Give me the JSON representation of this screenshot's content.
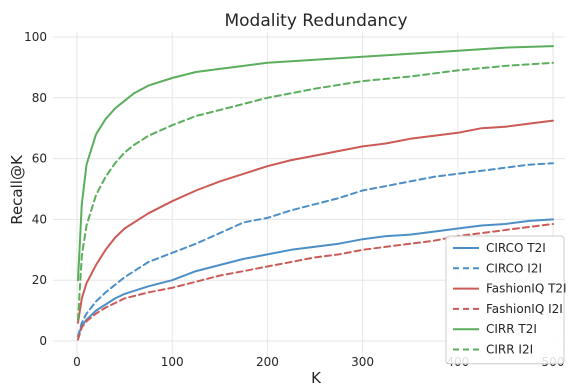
{
  "chart_data": {
    "type": "line",
    "title": "Modality Redundancy",
    "xlabel": "K",
    "ylabel": "Recall@K",
    "xlim": [
      0,
      500
    ],
    "ylim": [
      0,
      100
    ],
    "xticks": [
      0,
      100,
      200,
      300,
      400,
      500
    ],
    "yticks": [
      0,
      20,
      40,
      60,
      80,
      100
    ],
    "grid": true,
    "legend_position": "lower-right",
    "series": [
      {
        "name": "CIRCO T2I",
        "color": "#4c8fc7",
        "dash": "solid",
        "points": [
          [
            1,
            1.5
          ],
          [
            5,
            5
          ],
          [
            10,
            7
          ],
          [
            20,
            10
          ],
          [
            30,
            12
          ],
          [
            40,
            14
          ],
          [
            50,
            15.5
          ],
          [
            75,
            18
          ],
          [
            100,
            20
          ],
          [
            125,
            23
          ],
          [
            150,
            25
          ],
          [
            175,
            27
          ],
          [
            200,
            28.5
          ],
          [
            225,
            30
          ],
          [
            250,
            31
          ],
          [
            275,
            32
          ],
          [
            300,
            33.5
          ],
          [
            325,
            34.5
          ],
          [
            350,
            35
          ],
          [
            375,
            36
          ],
          [
            400,
            37
          ],
          [
            425,
            38
          ],
          [
            450,
            38.5
          ],
          [
            475,
            39.5
          ],
          [
            500,
            40
          ]
        ]
      },
      {
        "name": "CIRCO I2I",
        "color": "#4c8fc7",
        "dash": "dashed",
        "points": [
          [
            1,
            1.5
          ],
          [
            5,
            6
          ],
          [
            10,
            9
          ],
          [
            20,
            13
          ],
          [
            30,
            16
          ],
          [
            40,
            18.5
          ],
          [
            50,
            21
          ],
          [
            75,
            26
          ],
          [
            100,
            29
          ],
          [
            125,
            32
          ],
          [
            150,
            35.5
          ],
          [
            175,
            39
          ],
          [
            200,
            40.5
          ],
          [
            225,
            43
          ],
          [
            250,
            45
          ],
          [
            275,
            47
          ],
          [
            300,
            49.5
          ],
          [
            325,
            51
          ],
          [
            350,
            52.5
          ],
          [
            375,
            54
          ],
          [
            400,
            55
          ],
          [
            425,
            56
          ],
          [
            450,
            57
          ],
          [
            475,
            58
          ],
          [
            500,
            58.5
          ]
        ]
      },
      {
        "name": "FashionIQ T2I",
        "color": "#cc5a56",
        "dash": "solid",
        "points": [
          [
            1,
            6
          ],
          [
            5,
            14
          ],
          [
            10,
            19
          ],
          [
            20,
            25
          ],
          [
            30,
            30
          ],
          [
            40,
            34
          ],
          [
            50,
            37
          ],
          [
            75,
            42
          ],
          [
            100,
            46
          ],
          [
            125,
            49.5
          ],
          [
            150,
            52.5
          ],
          [
            175,
            55
          ],
          [
            200,
            57.5
          ],
          [
            225,
            59.5
          ],
          [
            250,
            61
          ],
          [
            275,
            62.5
          ],
          [
            300,
            64
          ],
          [
            325,
            65
          ],
          [
            350,
            66.5
          ],
          [
            375,
            67.5
          ],
          [
            400,
            68.5
          ],
          [
            425,
            70
          ],
          [
            450,
            70.5
          ],
          [
            475,
            71.5
          ],
          [
            500,
            72.5
          ]
        ]
      },
      {
        "name": "FashionIQ I2I",
        "color": "#cc5a56",
        "dash": "dashed",
        "points": [
          [
            1,
            0.5
          ],
          [
            5,
            4.5
          ],
          [
            10,
            6.5
          ],
          [
            20,
            9
          ],
          [
            30,
            11
          ],
          [
            40,
            12.5
          ],
          [
            50,
            14
          ],
          [
            75,
            16
          ],
          [
            100,
            17.5
          ],
          [
            125,
            19.5
          ],
          [
            150,
            21.5
          ],
          [
            175,
            23
          ],
          [
            200,
            24.5
          ],
          [
            225,
            26
          ],
          [
            250,
            27.5
          ],
          [
            275,
            28.5
          ],
          [
            300,
            30
          ],
          [
            325,
            31
          ],
          [
            350,
            32
          ],
          [
            375,
            33
          ],
          [
            400,
            34.5
          ],
          [
            425,
            35.5
          ],
          [
            450,
            36.5
          ],
          [
            475,
            37.5
          ],
          [
            500,
            38.5
          ]
        ]
      },
      {
        "name": "CIRR T2I",
        "color": "#5aae5c",
        "dash": "solid",
        "points": [
          [
            1,
            20
          ],
          [
            5,
            45
          ],
          [
            10,
            58
          ],
          [
            20,
            68
          ],
          [
            30,
            73
          ],
          [
            40,
            76.5
          ],
          [
            50,
            79
          ],
          [
            60,
            81.5
          ],
          [
            75,
            84
          ],
          [
            100,
            86.5
          ],
          [
            125,
            88.5
          ],
          [
            150,
            89.5
          ],
          [
            175,
            90.5
          ],
          [
            200,
            91.5
          ],
          [
            250,
            92.5
          ],
          [
            300,
            93.5
          ],
          [
            350,
            94.5
          ],
          [
            400,
            95.5
          ],
          [
            450,
            96.5
          ],
          [
            500,
            97
          ]
        ]
      },
      {
        "name": "CIRR I2I",
        "color": "#5aae5c",
        "dash": "dashed",
        "points": [
          [
            1,
            7
          ],
          [
            5,
            28
          ],
          [
            10,
            38
          ],
          [
            20,
            48
          ],
          [
            30,
            54
          ],
          [
            40,
            58.5
          ],
          [
            50,
            62
          ],
          [
            60,
            64.5
          ],
          [
            75,
            67.5
          ],
          [
            100,
            71
          ],
          [
            125,
            74
          ],
          [
            150,
            76
          ],
          [
            175,
            78
          ],
          [
            200,
            80
          ],
          [
            250,
            83
          ],
          [
            300,
            85.5
          ],
          [
            350,
            87
          ],
          [
            400,
            89
          ],
          [
            450,
            90.5
          ],
          [
            500,
            91.5
          ]
        ]
      }
    ]
  }
}
